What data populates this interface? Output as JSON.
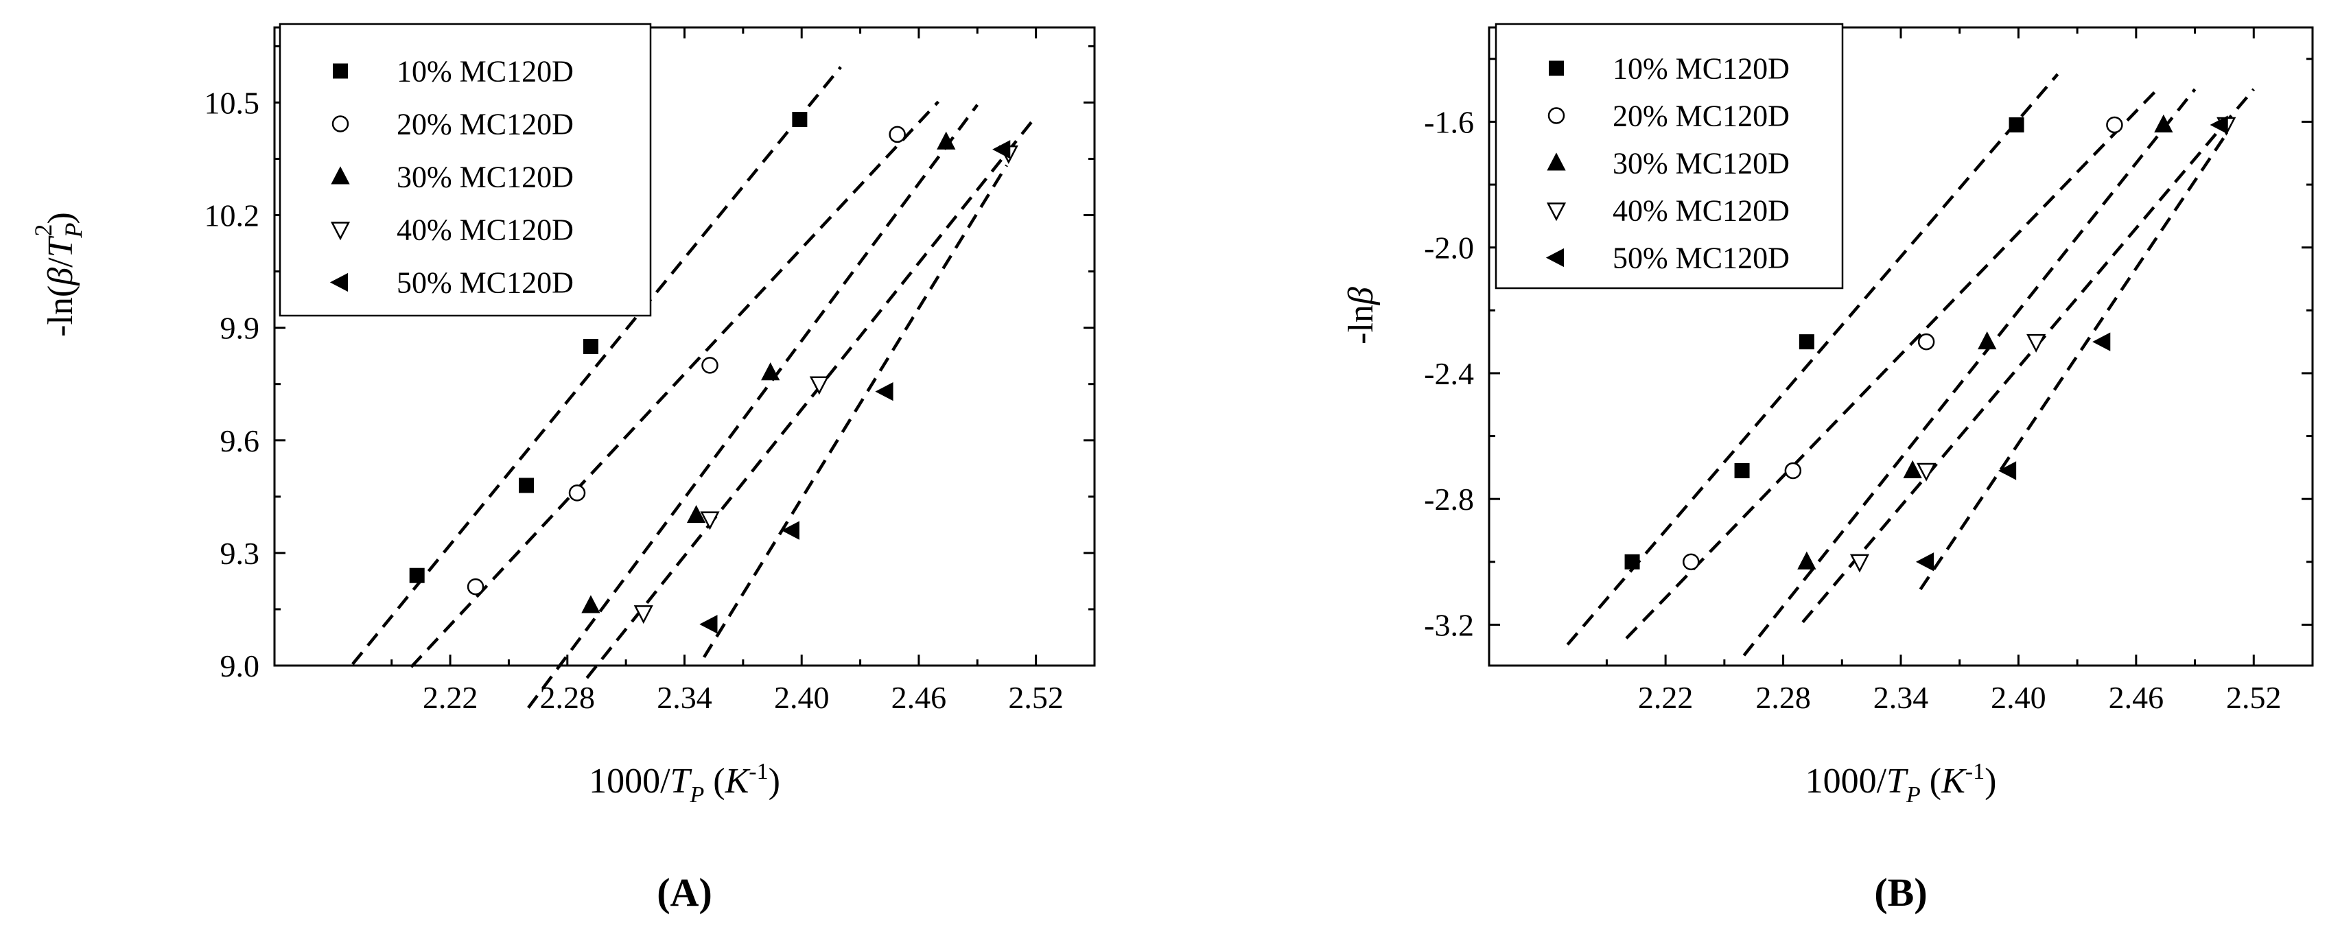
{
  "chart_data": [
    {
      "type": "scatter",
      "panel_label": "A",
      "panel_label_parts": [
        "(",
        "A",
        ")"
      ],
      "ylabel": "-ln(β/T_P^2)",
      "ylabel_parts": [
        "-ln(",
        "β",
        "/",
        "T",
        "P",
        "2",
        ")"
      ],
      "xlabel": "1000/T_P (K^-1)",
      "xlabel_parts": [
        "1000/",
        "T",
        "P",
        " (",
        "K",
        "-1",
        ")"
      ],
      "xlim": [
        2.13,
        2.55
      ],
      "ylim": [
        9.0,
        10.7
      ],
      "xticks": [
        "2.22",
        "2.28",
        "2.34",
        "2.40",
        "2.46",
        "2.52"
      ],
      "yticks": [
        "9.0",
        "9.3",
        "9.6",
        "9.9",
        "10.2",
        "10.5"
      ],
      "grid": false,
      "legend_position": "top-left",
      "series": [
        {
          "name": "10% MC120D",
          "marker": "square",
          "x": [
            2.203,
            2.259,
            2.292,
            2.399
          ],
          "y": [
            9.24,
            9.48,
            9.85,
            10.455
          ],
          "fit_x": [
            2.17,
            2.42
          ]
        },
        {
          "name": "20% MC120D",
          "marker": "circle-open",
          "x": [
            2.233,
            2.285,
            2.353,
            2.449
          ],
          "y": [
            9.21,
            9.46,
            9.8,
            10.415
          ],
          "fit_x": [
            2.2,
            2.47
          ]
        },
        {
          "name": "30% MC120D",
          "marker": "triangle-up",
          "x": [
            2.292,
            2.346,
            2.384,
            2.474
          ],
          "y": [
            9.16,
            9.4,
            9.78,
            10.395
          ],
          "fit_x": [
            2.26,
            2.49
          ]
        },
        {
          "name": "40% MC120D",
          "marker": "triangle-down-open",
          "x": [
            2.319,
            2.353,
            2.409,
            2.506
          ],
          "y": [
            9.14,
            9.39,
            9.75,
            10.365
          ],
          "fit_x": [
            2.29,
            2.52
          ]
        },
        {
          "name": "50% MC120D",
          "marker": "triangle-left",
          "x": [
            2.353,
            2.395,
            2.443,
            2.503
          ],
          "y": [
            9.11,
            9.36,
            9.73,
            10.375
          ],
          "fit_x": [
            2.35,
            2.505
          ]
        }
      ]
    },
    {
      "type": "scatter",
      "panel_label": "B",
      "panel_label_parts": [
        "(",
        "B",
        ")"
      ],
      "ylabel": "-lnβ",
      "ylabel_parts": [
        "-ln",
        "β"
      ],
      "xlabel": "1000/T_P (K^-1)",
      "xlabel_parts": [
        "1000/",
        "T",
        "P",
        " (",
        "K",
        "-1",
        ")"
      ],
      "xlim": [
        2.13,
        2.55
      ],
      "ylim": [
        -3.33,
        -1.3
      ],
      "xticks": [
        "2.22",
        "2.28",
        "2.34",
        "2.40",
        "2.46",
        "2.52"
      ],
      "yticks": [
        "-3.2",
        "-2.8",
        "-2.4",
        "-2.0",
        "-1.6"
      ],
      "grid": false,
      "legend_position": "top-left",
      "series": [
        {
          "name": "10% MC120D",
          "marker": "square",
          "x": [
            2.203,
            2.259,
            2.292,
            2.399
          ],
          "y": [
            -3.0,
            -2.71,
            -2.3,
            -1.61
          ],
          "fit_x": [
            2.17,
            2.42
          ]
        },
        {
          "name": "20% MC120D",
          "marker": "circle-open",
          "x": [
            2.233,
            2.285,
            2.353,
            2.449
          ],
          "y": [
            -3.0,
            -2.71,
            -2.3,
            -1.61
          ],
          "fit_x": [
            2.2,
            2.47
          ]
        },
        {
          "name": "30% MC120D",
          "marker": "triangle-up",
          "x": [
            2.292,
            2.346,
            2.384,
            2.474
          ],
          "y": [
            -3.0,
            -2.71,
            -2.3,
            -1.61
          ],
          "fit_x": [
            2.26,
            2.49
          ]
        },
        {
          "name": "40% MC120D",
          "marker": "triangle-down-open",
          "x": [
            2.319,
            2.353,
            2.409,
            2.506
          ],
          "y": [
            -3.0,
            -2.71,
            -2.3,
            -1.61
          ],
          "fit_x": [
            2.29,
            2.52
          ]
        },
        {
          "name": "50% MC120D",
          "marker": "triangle-left",
          "x": [
            2.353,
            2.395,
            2.443,
            2.503
          ],
          "y": [
            -3.0,
            -2.71,
            -2.3,
            -1.61
          ],
          "fit_x": [
            2.35,
            2.505
          ]
        }
      ]
    }
  ]
}
